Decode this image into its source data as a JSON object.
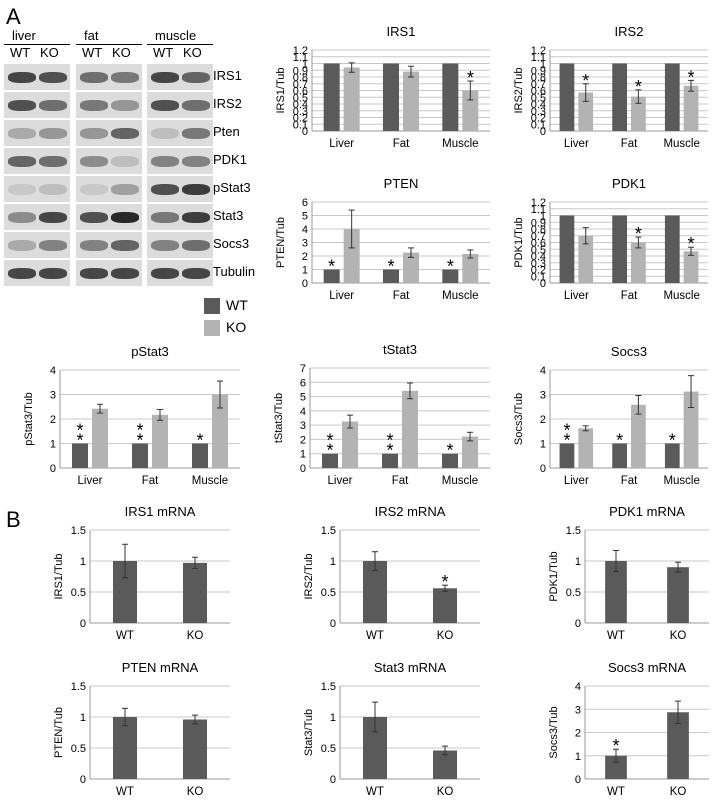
{
  "panels": {
    "a": "A",
    "b": "B"
  },
  "blot": {
    "groups": [
      {
        "name": "liver",
        "lanes": [
          "WT",
          "KO"
        ]
      },
      {
        "name": "fat",
        "lanes": [
          "WT",
          "KO"
        ]
      },
      {
        "name": "muscle",
        "lanes": [
          "WT",
          "KO"
        ]
      }
    ],
    "proteins": [
      "IRS1",
      "IRS2",
      "Pten",
      "PDK1",
      "pStat3",
      "Stat3",
      "Socs3",
      "Tubulin"
    ]
  },
  "legend": {
    "wt": "WT",
    "ko": "KO"
  },
  "colors": {
    "wt": "#5a5a5a",
    "ko": "#b3b3b3",
    "grid": "#c8c8c8",
    "axis": "#9a9a9a"
  },
  "chart_data": [
    {
      "type": "bar",
      "title": "IRS1",
      "ylabel": "IRS1/Tub",
      "xlabel": "",
      "categories": [
        "Liver",
        "Fat",
        "Muscle"
      ],
      "ylim": [
        0,
        1.2
      ],
      "yticks": [
        0,
        0.1,
        0.2,
        0.3,
        0.4,
        0.5,
        0.6,
        0.7,
        0.8,
        0.9,
        1,
        1.1,
        1.2
      ],
      "series": [
        {
          "name": "WT",
          "values": [
            1,
            1,
            1
          ],
          "errors": [
            0,
            0,
            0
          ]
        },
        {
          "name": "KO",
          "values": [
            0.94,
            0.88,
            0.6
          ],
          "errors": [
            0.07,
            0.08,
            0.14
          ]
        }
      ],
      "annotations": [
        {
          "category": 2,
          "series": 1,
          "text": "*"
        }
      ]
    },
    {
      "type": "bar",
      "title": "IRS2",
      "ylabel": "IRS2/Tub",
      "xlabel": "",
      "categories": [
        "Liver",
        "Fat",
        "Muscle"
      ],
      "ylim": [
        0,
        1.2
      ],
      "yticks": [
        0,
        0.1,
        0.2,
        0.3,
        0.4,
        0.5,
        0.6,
        0.7,
        0.8,
        0.9,
        1,
        1.1,
        1.2
      ],
      "series": [
        {
          "name": "WT",
          "values": [
            1,
            1,
            1
          ],
          "errors": [
            0,
            0,
            0
          ]
        },
        {
          "name": "KO",
          "values": [
            0.57,
            0.51,
            0.67
          ],
          "errors": [
            0.13,
            0.1,
            0.08
          ]
        }
      ],
      "annotations": [
        {
          "category": 0,
          "series": 1,
          "text": "*"
        },
        {
          "category": 1,
          "series": 1,
          "text": "*"
        },
        {
          "category": 2,
          "series": 1,
          "text": "*"
        }
      ]
    },
    {
      "type": "bar",
      "title": "PTEN",
      "ylabel": "PTEN/Tub",
      "xlabel": "",
      "categories": [
        "Liver",
        "Fat",
        "Muscle"
      ],
      "ylim": [
        0,
        6
      ],
      "yticks": [
        0,
        1,
        2,
        3,
        4,
        5,
        6
      ],
      "series": [
        {
          "name": "WT",
          "values": [
            1,
            1,
            1
          ],
          "errors": [
            0,
            0,
            0
          ]
        },
        {
          "name": "KO",
          "values": [
            4.0,
            2.25,
            2.15
          ],
          "errors": [
            1.4,
            0.35,
            0.3
          ]
        }
      ],
      "annotations": [
        {
          "category": 0,
          "series": 0,
          "text": "*"
        },
        {
          "category": 1,
          "series": 0,
          "text": "*"
        },
        {
          "category": 2,
          "series": 0,
          "text": "*"
        }
      ]
    },
    {
      "type": "bar",
      "title": "PDK1",
      "ylabel": "PDK1/Tub",
      "xlabel": "",
      "categories": [
        "Liver",
        "Fat",
        "Muscle"
      ],
      "ylim": [
        0,
        1.2
      ],
      "yticks": [
        0,
        0.1,
        0.2,
        0.3,
        0.4,
        0.5,
        0.6,
        0.7,
        0.8,
        0.9,
        1,
        1.1,
        1.2
      ],
      "series": [
        {
          "name": "WT",
          "values": [
            1,
            1,
            1
          ],
          "errors": [
            0,
            0,
            0
          ]
        },
        {
          "name": "KO",
          "values": [
            0.7,
            0.6,
            0.47
          ],
          "errors": [
            0.12,
            0.08,
            0.06
          ]
        }
      ],
      "annotations": [
        {
          "category": 1,
          "series": 1,
          "text": "*"
        },
        {
          "category": 2,
          "series": 1,
          "text": "*"
        }
      ]
    },
    {
      "type": "bar",
      "title": "pStat3",
      "ylabel": "pStat3/Tub",
      "xlabel": "",
      "categories": [
        "Liver",
        "Fat",
        "Muscle"
      ],
      "ylim": [
        0,
        4
      ],
      "yticks": [
        0,
        1,
        2,
        3,
        4
      ],
      "series": [
        {
          "name": "WT",
          "values": [
            1,
            1,
            1
          ],
          "errors": [
            0,
            0,
            0
          ]
        },
        {
          "name": "KO",
          "values": [
            2.42,
            2.17,
            3.0
          ],
          "errors": [
            0.18,
            0.22,
            0.55
          ]
        }
      ],
      "annotations": [
        {
          "category": 0,
          "series": 0,
          "text": "* *"
        },
        {
          "category": 1,
          "series": 0,
          "text": "* *"
        },
        {
          "category": 2,
          "series": 0,
          "text": "*"
        }
      ]
    },
    {
      "type": "bar",
      "title": "tStat3",
      "ylabel": "tStat3/Tub",
      "xlabel": "",
      "categories": [
        "Liver",
        "Fat",
        "Muscle"
      ],
      "ylim": [
        0,
        7
      ],
      "yticks": [
        0,
        1,
        2,
        3,
        4,
        5,
        6,
        7
      ],
      "series": [
        {
          "name": "WT",
          "values": [
            1,
            1,
            1
          ],
          "errors": [
            0,
            0,
            0
          ]
        },
        {
          "name": "KO",
          "values": [
            3.25,
            5.4,
            2.2
          ],
          "errors": [
            0.45,
            0.55,
            0.3
          ]
        }
      ],
      "annotations": [
        {
          "category": 0,
          "series": 0,
          "text": "* *"
        },
        {
          "category": 1,
          "series": 0,
          "text": "* *"
        },
        {
          "category": 2,
          "series": 0,
          "text": "*"
        }
      ]
    },
    {
      "type": "bar",
      "title": "Socs3",
      "ylabel": "Socs3/Tub",
      "xlabel": "",
      "categories": [
        "Liver",
        "Fat",
        "Muscle"
      ],
      "ylim": [
        0,
        4
      ],
      "yticks": [
        0,
        1,
        2,
        3,
        4
      ],
      "series": [
        {
          "name": "WT",
          "values": [
            1,
            1,
            1
          ],
          "errors": [
            0,
            0,
            0
          ]
        },
        {
          "name": "KO",
          "values": [
            1.62,
            2.58,
            3.12
          ],
          "errors": [
            0.1,
            0.38,
            0.65
          ]
        }
      ],
      "annotations": [
        {
          "category": 0,
          "series": 0,
          "text": "* *"
        },
        {
          "category": 1,
          "series": 0,
          "text": "*"
        },
        {
          "category": 2,
          "series": 0,
          "text": "*"
        }
      ]
    },
    {
      "type": "bar",
      "title": "IRS1 mRNA",
      "ylabel": "IRS1/Tub",
      "xlabel": "",
      "categories": [
        "WT",
        "KO"
      ],
      "ylim": [
        0,
        1.5
      ],
      "yticks": [
        0,
        0.5,
        1,
        1.5
      ],
      "series": [
        {
          "values": [
            1.0,
            0.97
          ],
          "errors": [
            0.27,
            0.09
          ]
        }
      ],
      "annotations": []
    },
    {
      "type": "bar",
      "title": "IRS2 mRNA",
      "ylabel": "IRS2/Tub",
      "xlabel": "",
      "categories": [
        "WT",
        "KO"
      ],
      "ylim": [
        0,
        1.5
      ],
      "yticks": [
        0,
        0.5,
        1,
        1.5
      ],
      "series": [
        {
          "values": [
            1.0,
            0.56
          ],
          "errors": [
            0.15,
            0.05
          ]
        }
      ],
      "annotations": [
        {
          "category": 1,
          "series": 0,
          "text": "*"
        }
      ]
    },
    {
      "type": "bar",
      "title": "PDK1 mRNA",
      "ylabel": "PDK1/Tub",
      "xlabel": "",
      "categories": [
        "WT",
        "KO"
      ],
      "ylim": [
        0,
        1.5
      ],
      "yticks": [
        0,
        0.5,
        1,
        1.5
      ],
      "series": [
        {
          "values": [
            1.0,
            0.9
          ],
          "errors": [
            0.17,
            0.08
          ]
        }
      ],
      "annotations": []
    },
    {
      "type": "bar",
      "title": "PTEN mRNA",
      "ylabel": "PTEN/Tub",
      "xlabel": "",
      "categories": [
        "WT",
        "KO"
      ],
      "ylim": [
        0,
        1.5
      ],
      "yticks": [
        0,
        0.5,
        1,
        1.5
      ],
      "series": [
        {
          "values": [
            1.0,
            0.96
          ],
          "errors": [
            0.14,
            0.07
          ]
        }
      ],
      "annotations": []
    },
    {
      "type": "bar",
      "title": "Stat3 mRNA",
      "ylabel": "Stat3/Tub",
      "xlabel": "",
      "categories": [
        "WT",
        "KO"
      ],
      "ylim": [
        0,
        1.5
      ],
      "yticks": [
        0,
        0.5,
        1,
        1.5
      ],
      "series": [
        {
          "values": [
            1.0,
            0.46
          ],
          "errors": [
            0.24,
            0.07
          ]
        }
      ],
      "annotations": []
    },
    {
      "type": "bar",
      "title": "Socs3 mRNA",
      "ylabel": "Socs3/Tub",
      "xlabel": "",
      "categories": [
        "WT",
        "KO"
      ],
      "ylim": [
        0,
        4
      ],
      "yticks": [
        0,
        1,
        2,
        3,
        4
      ],
      "series": [
        {
          "values": [
            1.0,
            2.87
          ],
          "errors": [
            0.28,
            0.48
          ]
        }
      ],
      "annotations": [
        {
          "category": 0,
          "series": 0,
          "text": "*"
        }
      ]
    }
  ]
}
